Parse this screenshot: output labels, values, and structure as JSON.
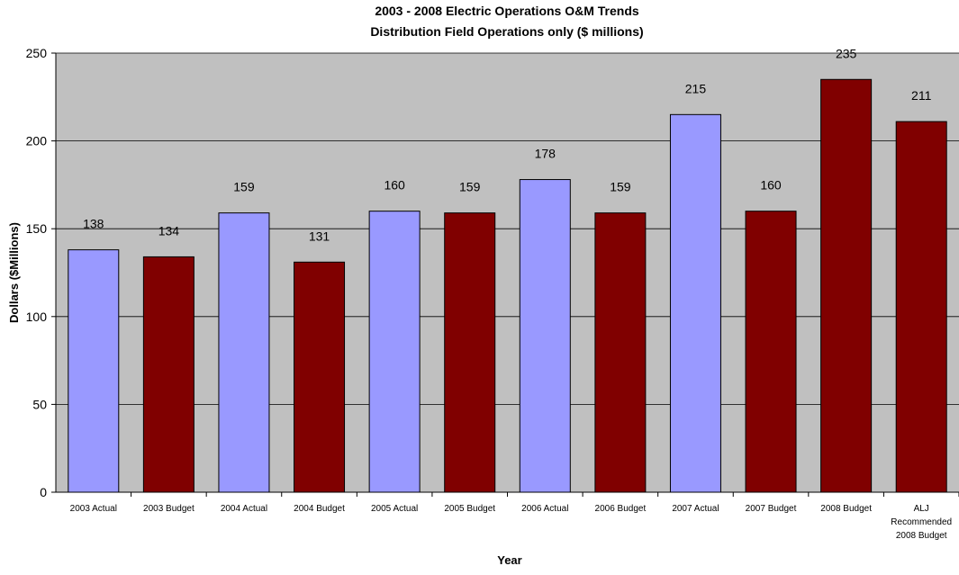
{
  "chart_data": {
    "type": "bar",
    "title": [
      "2003 - 2008 Electric Operations O&M Trends",
      "Distribution Field Operations only ($ millions)"
    ],
    "xlabel": "Year",
    "ylabel": "Dollars ($Millions)",
    "ylim": [
      0,
      250
    ],
    "yticks": [
      "0",
      "50",
      "100",
      "150",
      "200",
      "250"
    ],
    "grid": true,
    "legend": "none",
    "categories": [
      [
        "2003 Actual"
      ],
      [
        "2003 Budget"
      ],
      [
        "2004 Actual"
      ],
      [
        "2004 Budget"
      ],
      [
        "2005 Actual"
      ],
      [
        "2005 Budget"
      ],
      [
        "2006 Actual"
      ],
      [
        "2006 Budget"
      ],
      [
        "2007 Actual"
      ],
      [
        "2007 Budget"
      ],
      [
        "2008 Budget"
      ],
      [
        "ALJ",
        "Recommended",
        "2008 Budget"
      ]
    ],
    "values": [
      138,
      134,
      159,
      131,
      160,
      159,
      178,
      159,
      215,
      160,
      235,
      211
    ],
    "labels": [
      "138",
      "134",
      "159",
      "131",
      "160",
      "159",
      "178",
      "159",
      "215",
      "160",
      "235",
      "211"
    ],
    "bar_kinds": [
      "actual",
      "budget",
      "actual",
      "budget",
      "actual",
      "budget",
      "actual",
      "budget",
      "actual",
      "budget",
      "budget",
      "budget"
    ],
    "colors": {
      "actual": "#9999ff",
      "budget": "#800000",
      "plot_background": "#c0c0c0",
      "gridline": "#000000"
    }
  }
}
